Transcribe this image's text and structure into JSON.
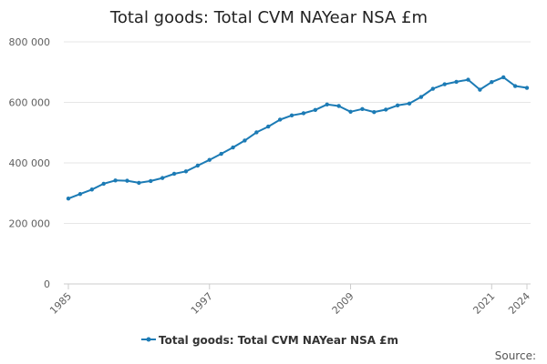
{
  "chart_data": {
    "type": "line",
    "title": "Total goods: Total CVM NAYear NSA £m",
    "xlabel": "",
    "ylabel": "",
    "x": [
      1985,
      1986,
      1987,
      1988,
      1989,
      1990,
      1991,
      1992,
      1993,
      1994,
      1995,
      1996,
      1997,
      1998,
      1999,
      2000,
      2001,
      2002,
      2003,
      2004,
      2005,
      2006,
      2007,
      2008,
      2009,
      2010,
      2011,
      2012,
      2013,
      2014,
      2015,
      2016,
      2017,
      2018,
      2019,
      2020,
      2021,
      2022,
      2023,
      2024
    ],
    "x_tick_labels": [
      "1985",
      "1997",
      "2009",
      "2021",
      "2024"
    ],
    "x_tick_values": [
      1985,
      1997,
      2009,
      2021,
      2024
    ],
    "y_tick_labels": [
      "0",
      "200 000",
      "400 000",
      "600 000",
      "800 000"
    ],
    "y_tick_values": [
      0,
      200000,
      400000,
      600000,
      800000
    ],
    "ylim": [
      0,
      800000
    ],
    "grid": "horizontal",
    "legend_position": "bottom",
    "series": [
      {
        "name": "Total goods: Total CVM NAYear NSA £m",
        "color": "#1c7bb5",
        "values": [
          282000,
          297000,
          312000,
          331000,
          342000,
          341000,
          334000,
          340000,
          350000,
          364000,
          372000,
          391000,
          410000,
          430000,
          451000,
          474000,
          501000,
          520000,
          543000,
          557000,
          564000,
          575000,
          593000,
          588000,
          569000,
          578000,
          568000,
          576000,
          590000,
          596000,
          618000,
          645000,
          660000,
          668000,
          675000,
          642000,
          667000,
          683000,
          654000,
          648000
        ]
      }
    ],
    "source_label": "Source:"
  }
}
